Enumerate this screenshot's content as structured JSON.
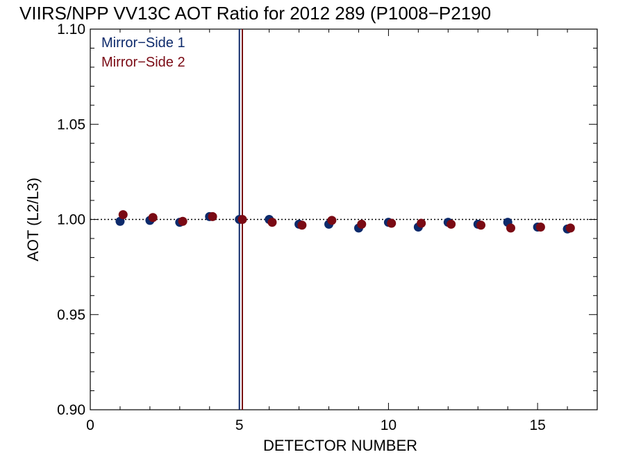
{
  "chart_data": {
    "type": "scatter",
    "title": "VIIRS/NPP VV13C AOT Ratio for 2012 289 (P1008−P2190",
    "xlabel": "DETECTOR NUMBER",
    "ylabel": "AOT (L2/L3)",
    "xlim": [
      0,
      17
    ],
    "ylim": [
      0.9,
      1.1
    ],
    "x_ticks": [
      0,
      5,
      10,
      15
    ],
    "x_tick_labels": [
      "0",
      "5",
      "10",
      "15"
    ],
    "y_ticks": [
      0.9,
      0.95,
      1.0,
      1.05,
      1.1
    ],
    "y_tick_labels": [
      "0.90",
      "0.95",
      "1.00",
      "1.05",
      "1.10"
    ],
    "reference_line": {
      "y": 1.0,
      "style": "dotted"
    },
    "legend_position": "top-left",
    "grid": false,
    "series": [
      {
        "name": "Mirror−Side 1",
        "color": "#0d2a6b",
        "x": [
          1,
          2,
          3,
          4,
          5,
          6,
          7,
          8,
          9,
          10,
          11,
          12,
          13,
          14,
          15,
          16
        ],
        "y": [
          0.999,
          0.9995,
          0.9985,
          1.0015,
          1.0,
          1.0,
          0.9975,
          0.9975,
          0.9955,
          0.9985,
          0.996,
          0.9985,
          0.9975,
          0.9985,
          0.996,
          0.995
        ],
        "vline_x": 5.0
      },
      {
        "name": "Mirror−Side 2",
        "color": "#7a0a14",
        "x": [
          1.1,
          2.1,
          3.1,
          4.1,
          5.1,
          6.1,
          7.1,
          8.1,
          9.1,
          10.1,
          11.1,
          12.1,
          13.1,
          14.1,
          15.1,
          16.1
        ],
        "y": [
          1.0025,
          1.001,
          0.999,
          1.0015,
          1.0,
          0.9985,
          0.997,
          0.9995,
          0.9975,
          0.998,
          0.998,
          0.9975,
          0.997,
          0.9955,
          0.996,
          0.9955
        ],
        "vline_x": 5.1
      }
    ]
  }
}
